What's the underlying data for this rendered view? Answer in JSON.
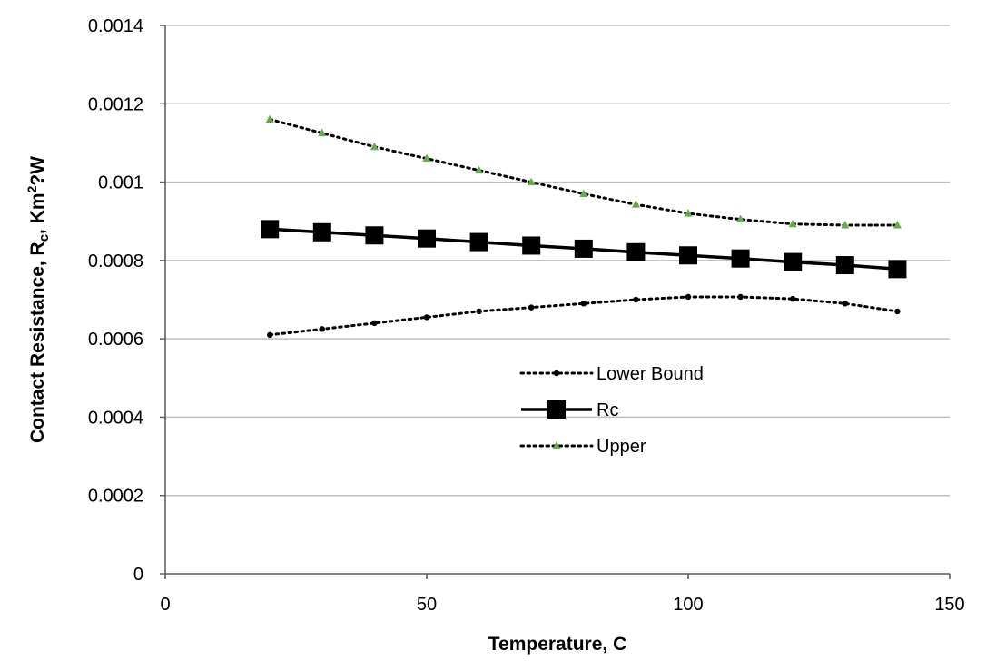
{
  "chart_data": {
    "type": "line",
    "xlabel": "Temperature, C",
    "ylabel_parts": {
      "main": "Contact Resistance, R",
      "sub": "c",
      "unit_prefix": ", Km",
      "sup": "2",
      "unit_suffix": "?W"
    },
    "xlim": [
      0,
      150
    ],
    "ylim": [
      0,
      0.0014
    ],
    "x_ticks": [
      0,
      50,
      100,
      150
    ],
    "x_tick_labels": [
      "0",
      "50",
      "100",
      "150"
    ],
    "y_ticks": [
      0,
      0.0002,
      0.0004,
      0.0006,
      0.0008,
      0.001,
      0.0012,
      0.0014
    ],
    "y_tick_labels": [
      "0",
      "0.0002",
      "0.0004",
      "0.0006",
      "0.0008",
      "0.001",
      "0.0012",
      "0.0014"
    ],
    "grid": "horizontal",
    "legend_position": "center",
    "x": [
      20,
      30,
      40,
      50,
      60,
      70,
      80,
      90,
      100,
      110,
      120,
      130,
      140
    ],
    "series": [
      {
        "name": "Lower Bound",
        "style": "dotted-line-dots",
        "color": "#000000",
        "values": [
          0.00061,
          0.000625,
          0.00064,
          0.000655,
          0.00067,
          0.00068,
          0.00069,
          0.0007,
          0.000707,
          0.000707,
          0.000702,
          0.00069,
          0.00067
        ]
      },
      {
        "name": "Rc",
        "style": "solid-line-squares",
        "color": "#000000",
        "values": [
          0.00088,
          0.000872,
          0.000864,
          0.000856,
          0.000847,
          0.000838,
          0.00083,
          0.000821,
          0.000813,
          0.000805,
          0.000796,
          0.000788,
          0.000778
        ]
      },
      {
        "name": "Upper",
        "style": "dotted-line-triangles",
        "color": "#000000",
        "marker_color": "#6aa84f",
        "values": [
          0.00116,
          0.001125,
          0.00109,
          0.00106,
          0.00103,
          0.001,
          0.00097,
          0.000943,
          0.00092,
          0.000905,
          0.000893,
          0.00089,
          0.00089
        ]
      }
    ]
  }
}
